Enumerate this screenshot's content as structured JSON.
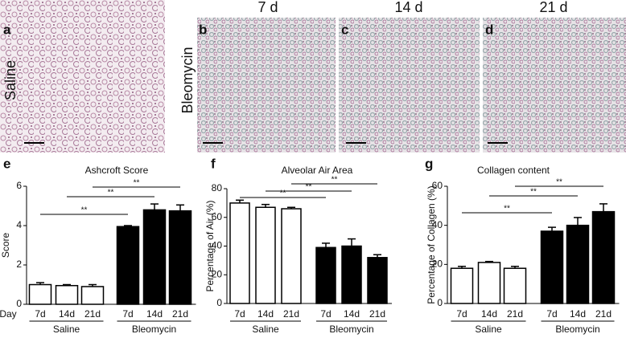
{
  "panels": {
    "row_labels": [
      "Saline",
      "Bleomycin"
    ],
    "column_headers": [
      "7 d",
      "14 d",
      "21 d"
    ],
    "image_labels": [
      "a",
      "b",
      "c",
      "d"
    ],
    "chart_labels": [
      "e",
      "f",
      "g"
    ]
  },
  "chart_data": [
    {
      "type": "bar",
      "title": "Ashcroft Score",
      "ylabel": "Score",
      "xlabel": "Day",
      "categories": [
        "7d",
        "14d",
        "21d",
        "7d",
        "14d",
        "21d"
      ],
      "groups": [
        "Saline",
        "Bleomycin"
      ],
      "values": [
        1.0,
        0.95,
        0.9,
        3.95,
        4.8,
        4.75
      ],
      "errors": [
        0.1,
        0.05,
        0.1,
        0.05,
        0.3,
        0.3
      ],
      "colors": [
        "#ffffff",
        "#ffffff",
        "#ffffff",
        "#000000",
        "#000000",
        "#000000"
      ],
      "significance": [
        "**",
        "**",
        "**"
      ],
      "ylim": [
        0,
        6
      ],
      "yticks": [
        0,
        2,
        4,
        6
      ]
    },
    {
      "type": "bar",
      "title": "Alveolar Air Area",
      "ylabel": "Percentage of Air (%)",
      "categories": [
        "7d",
        "14d",
        "21d",
        "7d",
        "14d",
        "21d"
      ],
      "groups": [
        "Saline",
        "Bleomycin"
      ],
      "values": [
        70,
        67,
        66,
        39,
        40,
        32
      ],
      "errors": [
        2,
        2,
        1,
        3,
        5,
        2
      ],
      "colors": [
        "#ffffff",
        "#ffffff",
        "#ffffff",
        "#000000",
        "#000000",
        "#000000"
      ],
      "significance": [
        "**",
        "**",
        "**"
      ],
      "ylim": [
        0,
        80
      ],
      "yticks": [
        0,
        20,
        40,
        60,
        80
      ]
    },
    {
      "type": "bar",
      "title": "Collagen content",
      "ylabel": "Percentage of Collagen (%)",
      "categories": [
        "7d",
        "14d",
        "21d",
        "7d",
        "14d",
        "21d"
      ],
      "groups": [
        "Saline",
        "Bleomycin"
      ],
      "values": [
        18,
        21,
        18,
        37,
        40,
        47
      ],
      "errors": [
        1,
        0.5,
        1,
        2,
        4,
        4
      ],
      "colors": [
        "#ffffff",
        "#ffffff",
        "#ffffff",
        "#000000",
        "#000000",
        "#000000"
      ],
      "significance": [
        "**",
        "**",
        "**"
      ],
      "ylim": [
        0,
        60
      ],
      "yticks": [
        0,
        20,
        40,
        60
      ]
    }
  ]
}
